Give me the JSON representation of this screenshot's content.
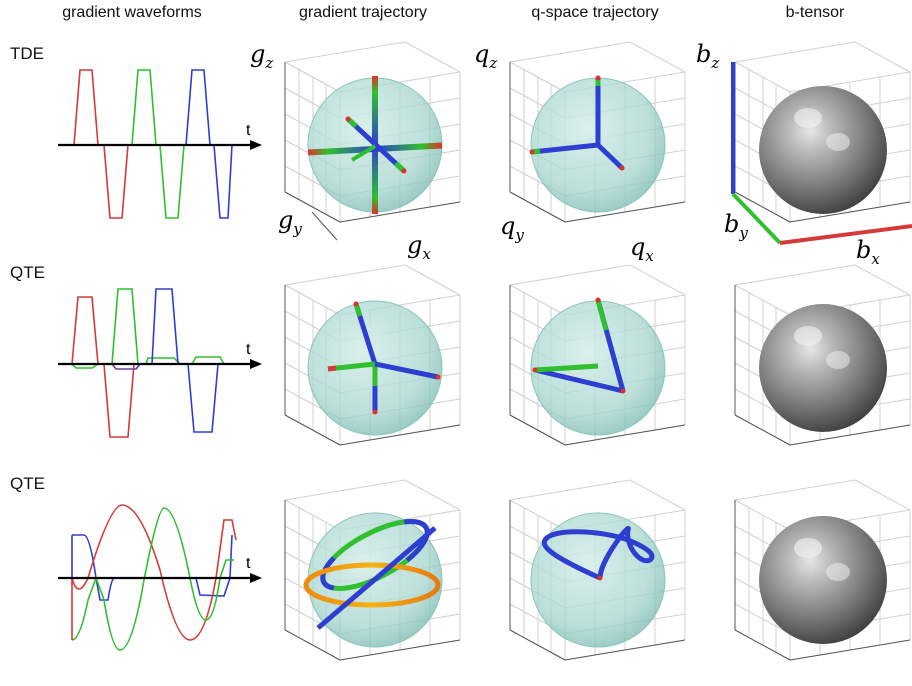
{
  "headers": {
    "waveforms": "gradient waveforms",
    "gradient": "gradient trajectory",
    "qspace": "q-space trajectory",
    "btensor": "b-tensor"
  },
  "rows": [
    {
      "label": "TDE"
    },
    {
      "label": "QTE"
    },
    {
      "label": "QTE"
    }
  ],
  "time_axis_label": "t",
  "axis_labels": {
    "g": {
      "x": "x",
      "y": "y",
      "z": "z",
      "base": "g"
    },
    "q": {
      "x": "x",
      "y": "y",
      "z": "z",
      "base": "q"
    },
    "b": {
      "x": "x",
      "y": "y",
      "z": "z",
      "base": "b"
    }
  },
  "colors": {
    "x": "#d43a3a",
    "y": "#2fbf2f",
    "z": "#2d3fd1",
    "sphere": "#9fd3cc",
    "btensor_sphere": "#8a8a8a"
  }
}
